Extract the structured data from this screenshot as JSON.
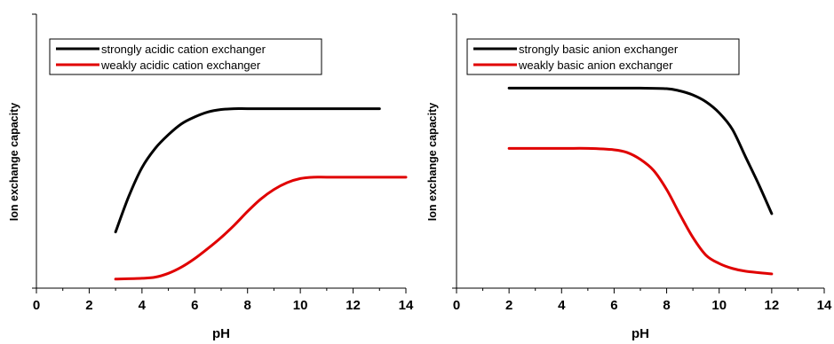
{
  "chart_data": [
    {
      "type": "line",
      "xlabel": "pH",
      "ylabel": "Ion exchange capacity",
      "xlim": [
        0,
        14
      ],
      "ylim": [
        0,
        1
      ],
      "x_ticks": [
        0,
        2,
        4,
        6,
        8,
        10,
        12,
        14
      ],
      "y_ticks_labeled": false,
      "grid": false,
      "legend_position": "top-left",
      "series": [
        {
          "name": "strongly acidic cation exchanger",
          "color": "#000000",
          "x": [
            3.0,
            3.5,
            4.0,
            4.5,
            5.0,
            5.5,
            6.0,
            6.5,
            7.0,
            7.5,
            8.0,
            9.0,
            10.0,
            11.0,
            12.0,
            13.0
          ],
          "y": [
            0.205,
            0.335,
            0.44,
            0.51,
            0.56,
            0.6,
            0.625,
            0.643,
            0.652,
            0.655,
            0.655,
            0.655,
            0.655,
            0.655,
            0.655,
            0.655
          ]
        },
        {
          "name": "weakly acidic cation exchanger",
          "color": "#e00000",
          "x": [
            3.0,
            4.0,
            4.5,
            5.0,
            5.5,
            6.0,
            6.5,
            7.0,
            7.5,
            8.0,
            8.5,
            9.0,
            9.5,
            10.0,
            10.5,
            11.0,
            12.0,
            13.0,
            14.0
          ],
          "y": [
            0.033,
            0.036,
            0.04,
            0.054,
            0.077,
            0.108,
            0.145,
            0.185,
            0.23,
            0.28,
            0.325,
            0.36,
            0.385,
            0.4,
            0.405,
            0.405,
            0.405,
            0.405,
            0.405
          ]
        }
      ]
    },
    {
      "type": "line",
      "xlabel": "pH",
      "ylabel": "Ion exchange capacity",
      "xlim": [
        0,
        14
      ],
      "ylim": [
        0,
        1
      ],
      "x_ticks": [
        0,
        2,
        4,
        6,
        8,
        10,
        12,
        14
      ],
      "y_ticks_labeled": false,
      "grid": false,
      "legend_position": "top-left",
      "series": [
        {
          "name": "strongly basic anion exchanger",
          "color": "#000000",
          "x": [
            2.0,
            4.0,
            6.0,
            7.0,
            8.0,
            8.5,
            9.0,
            9.5,
            10.0,
            10.5,
            11.0,
            11.5,
            12.0
          ],
          "y": [
            0.73,
            0.73,
            0.73,
            0.73,
            0.728,
            0.72,
            0.705,
            0.68,
            0.64,
            0.58,
            0.48,
            0.38,
            0.272
          ]
        },
        {
          "name": "weakly basic anion exchanger",
          "color": "#e00000",
          "x": [
            2.0,
            4.0,
            5.0,
            6.0,
            6.5,
            7.0,
            7.5,
            8.0,
            8.5,
            9.0,
            9.5,
            10.0,
            10.5,
            11.0,
            12.0
          ],
          "y": [
            0.51,
            0.51,
            0.51,
            0.505,
            0.495,
            0.47,
            0.43,
            0.36,
            0.27,
            0.185,
            0.12,
            0.09,
            0.072,
            0.062,
            0.052
          ]
        }
      ]
    }
  ]
}
